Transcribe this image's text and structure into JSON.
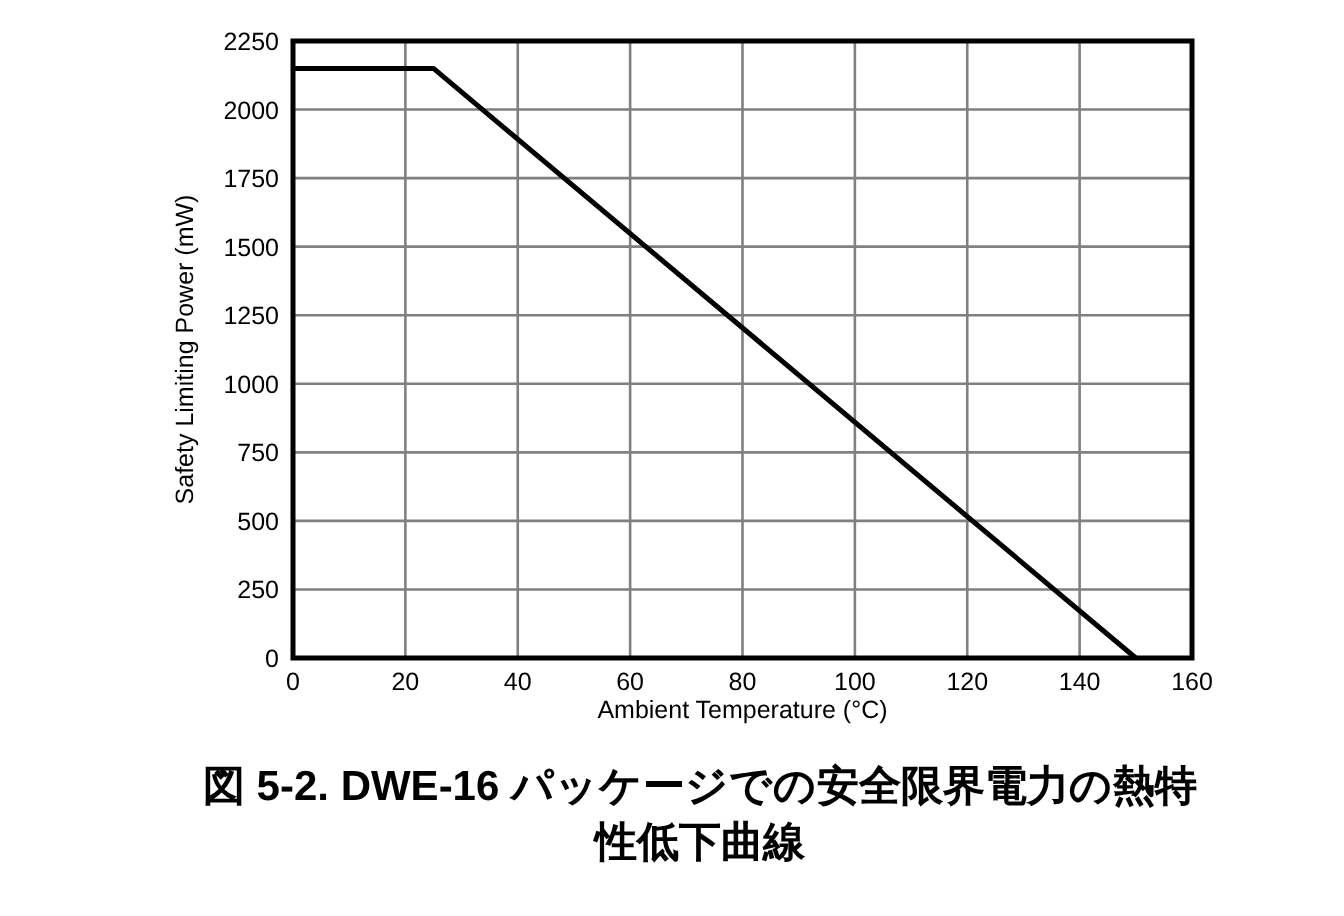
{
  "chart_data": {
    "type": "line",
    "title": "図 5-2. DWE-16 パッケージでの安全限界電力の熱特性低下曲線",
    "xlabel": "Ambient Temperature (°C)",
    "ylabel": "Safety Limiting Power (mW)",
    "x": [
      0,
      25,
      150
    ],
    "series": [
      {
        "color": "#000000",
        "values": [
          2150,
          2150,
          0
        ]
      }
    ],
    "xlim": [
      0,
      160
    ],
    "xticks": [
      0,
      20,
      40,
      60,
      80,
      100,
      120,
      140,
      160
    ],
    "ylim": [
      0,
      2250
    ],
    "yticks": [
      0,
      250,
      500,
      750,
      1000,
      1250,
      1500,
      1750,
      2000,
      2250
    ],
    "grid": true,
    "marker": "none",
    "line_style": "solid"
  }
}
